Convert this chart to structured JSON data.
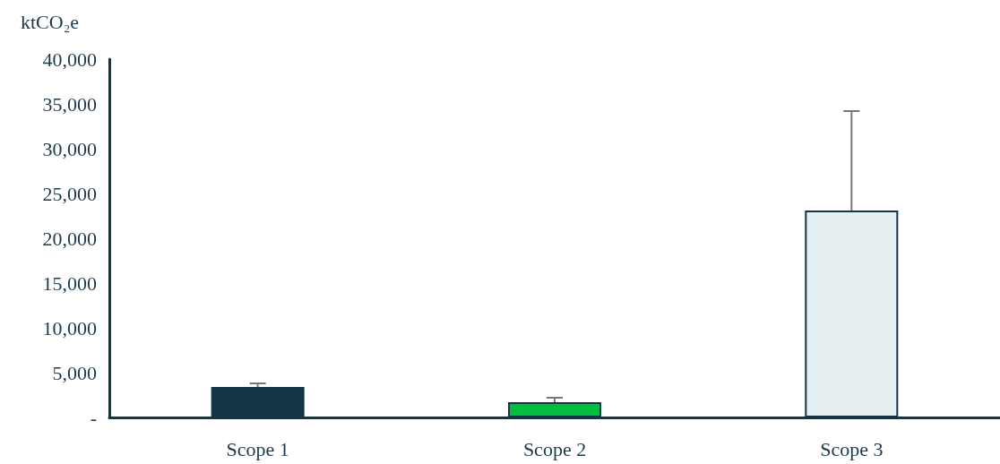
{
  "chart_data": {
    "type": "bar",
    "ylabel": "ktCO₂e",
    "categories": [
      "Scope 1",
      "Scope 2",
      "Scope 3"
    ],
    "values": [
      3400,
      1700,
      23100
    ],
    "colors": [
      "#133646",
      "#00bf3f",
      "#e5eef0"
    ],
    "errors": [
      [
        3400,
        3800
      ],
      [
        1700,
        2200
      ],
      [
        23100,
        34200
      ]
    ],
    "ylim": [
      0,
      40000
    ],
    "yticks": [
      {
        "value": 0,
        "label": "-"
      },
      {
        "value": 5000,
        "label": "5,000"
      },
      {
        "value": 10000,
        "label": "10,000"
      },
      {
        "value": 15000,
        "label": "15,000"
      },
      {
        "value": 20000,
        "label": "20,000"
      },
      {
        "value": 25000,
        "label": "25,000"
      },
      {
        "value": 30000,
        "label": "30,000"
      },
      {
        "value": 35000,
        "label": "35,000"
      },
      {
        "value": 40000,
        "label": "40,000"
      }
    ],
    "grid": false
  }
}
